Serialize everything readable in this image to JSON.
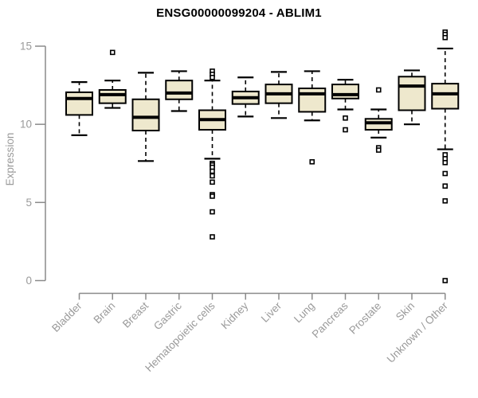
{
  "page": {
    "background": "#ffffff"
  },
  "chart_data": {
    "type": "boxplot",
    "title": "ENSG00000099204 - ABLIM1",
    "ylabel": "Expression",
    "xlabel": "",
    "ylim": [
      0,
      15
    ],
    "yticks": [
      0,
      5,
      10,
      15
    ],
    "grid": false,
    "legend": "none",
    "categories": [
      "Bladder",
      "Brain",
      "Breast",
      "Gastric",
      "Hematopoietic cells",
      "Kidney",
      "Liver",
      "Lung",
      "Pancreas",
      "Prostate",
      "Skin",
      "Unknown / Other"
    ],
    "series": [
      {
        "category": "Bladder",
        "whisker_low": 9.3,
        "q1": 10.6,
        "median": 11.65,
        "q3": 12.05,
        "whisker_high": 12.7,
        "outliers": []
      },
      {
        "category": "Brain",
        "whisker_low": 11.05,
        "q1": 11.35,
        "median": 11.9,
        "q3": 12.2,
        "whisker_high": 12.8,
        "outliers": [
          14.6
        ]
      },
      {
        "category": "Breast",
        "whisker_low": 7.65,
        "q1": 9.6,
        "median": 10.45,
        "q3": 11.6,
        "whisker_high": 13.3,
        "outliers": []
      },
      {
        "category": "Gastric",
        "whisker_low": 10.85,
        "q1": 11.6,
        "median": 12.0,
        "q3": 12.8,
        "whisker_high": 13.4,
        "outliers": []
      },
      {
        "category": "Hematopoietic cells",
        "whisker_low": 7.8,
        "q1": 9.65,
        "median": 10.3,
        "q3": 10.9,
        "whisker_high": 12.8,
        "outliers": [
          13.4,
          13.2,
          13.0,
          7.5,
          7.4,
          7.25,
          7.0,
          6.7,
          6.3,
          5.5,
          5.4,
          4.4,
          2.8
        ]
      },
      {
        "category": "Kidney",
        "whisker_low": 10.5,
        "q1": 11.3,
        "median": 11.7,
        "q3": 12.1,
        "whisker_high": 13.0,
        "outliers": []
      },
      {
        "category": "Liver",
        "whisker_low": 10.4,
        "q1": 11.35,
        "median": 11.95,
        "q3": 12.55,
        "whisker_high": 13.35,
        "outliers": []
      },
      {
        "category": "Lung",
        "whisker_low": 10.25,
        "q1": 10.8,
        "median": 11.95,
        "q3": 12.3,
        "whisker_high": 13.4,
        "outliers": [
          7.6
        ]
      },
      {
        "category": "Pancreas",
        "whisker_low": 10.95,
        "q1": 11.65,
        "median": 11.9,
        "q3": 12.55,
        "whisker_high": 12.85,
        "outliers": [
          10.4,
          9.65
        ]
      },
      {
        "category": "Prostate",
        "whisker_low": 9.15,
        "q1": 9.65,
        "median": 10.1,
        "q3": 10.35,
        "whisker_high": 10.95,
        "outliers": [
          12.2,
          8.5,
          8.35
        ]
      },
      {
        "category": "Skin",
        "whisker_low": 10.0,
        "q1": 10.9,
        "median": 12.45,
        "q3": 13.05,
        "whisker_high": 13.45,
        "outliers": []
      },
      {
        "category": "Unknown / Other",
        "whisker_low": 8.4,
        "q1": 11.0,
        "median": 11.95,
        "q3": 12.6,
        "whisker_high": 14.85,
        "outliers": [
          15.9,
          15.75,
          15.55,
          8.05,
          7.8,
          7.55,
          6.85,
          6.05,
          5.1,
          0.0
        ]
      }
    ],
    "colors": {
      "box_fill": "#EEE8CD",
      "box_stroke": "#000000",
      "median": "#000000",
      "whisker": "#000000",
      "outlier_stroke": "#000000",
      "outlier_fill": "#ffffff",
      "axis_line": "#8a8a8a",
      "tick_label": "#9a9a9a",
      "title": "#000000"
    }
  }
}
